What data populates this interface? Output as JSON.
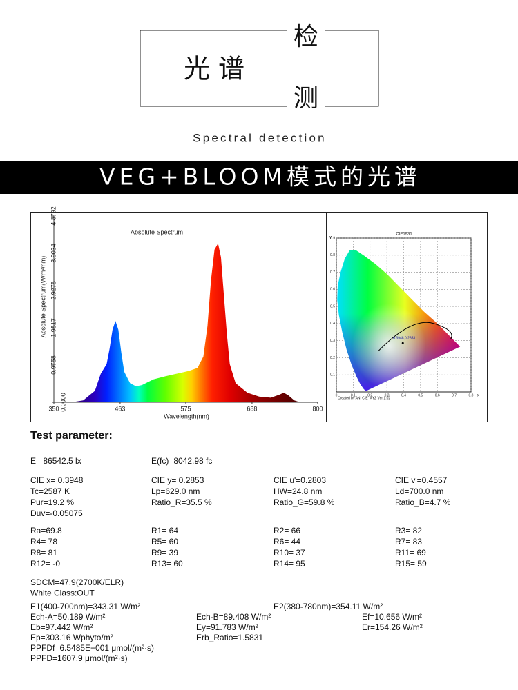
{
  "header": {
    "title_left": "光 谱",
    "title_top": "检",
    "title_bottom": "测",
    "subtitle": "Spectral detection"
  },
  "banner": "VEG+BLOOM模式的光谱",
  "spectrum": {
    "type": "area",
    "title": "Absolute Spectrum",
    "x_label": "Wavelength(nm)",
    "y_label": "Absolute Spectrum(W/m²/nm)",
    "x": [
      380,
      400,
      420,
      430,
      440,
      445,
      450,
      455,
      460,
      465,
      470,
      480,
      490,
      500,
      520,
      540,
      560,
      580,
      595,
      605,
      612,
      618,
      624,
      630,
      635,
      640,
      645,
      650,
      660,
      680,
      700,
      720,
      735,
      742,
      750,
      760,
      770
    ],
    "values": [
      0,
      0.05,
      0.3,
      0.75,
      1.0,
      1.4,
      1.9,
      2.13,
      1.9,
      1.3,
      0.8,
      0.5,
      0.42,
      0.45,
      0.6,
      0.68,
      0.75,
      0.82,
      0.9,
      1.2,
      2.0,
      3.2,
      4.0,
      4.16,
      3.8,
      2.8,
      1.8,
      1.0,
      0.5,
      0.25,
      0.15,
      0.12,
      0.2,
      0.25,
      0.18,
      0.05,
      0
    ],
    "xlim": [
      350,
      800
    ],
    "ylim": [
      0,
      4.8792
    ],
    "xticks": [
      350,
      463,
      575,
      688,
      800
    ],
    "yticks": [
      {
        "value": 0,
        "label": "0.0000"
      },
      0.9758,
      1.9517,
      2.9275,
      3.9034,
      4.8792
    ]
  },
  "cie": {
    "title": "CIE1931",
    "x_label": "x",
    "y_label": "y",
    "credit": "Created by AN_CIE_XYZ Ver 1.02",
    "xlim": [
      0,
      0.8
    ],
    "ylim": [
      0,
      0.9
    ],
    "xticks": [
      0,
      0.1,
      0.2,
      0.3,
      0.4,
      0.5,
      0.6,
      0.7,
      0.8
    ],
    "yticks": [
      0.1,
      0.2,
      0.3,
      0.4,
      0.5,
      0.6,
      0.7,
      0.8,
      0.9
    ],
    "point": {
      "x": 0.3948,
      "y": 0.2853
    },
    "point_label": "0.3948,0.2853"
  },
  "params": {
    "heading": "Test parameter:",
    "blocks": [
      [
        [
          "E=  86542.5 lx",
          "E(fc)=8042.98 fc"
        ]
      ],
      [
        [
          "CIE x= 0.3948",
          "CIE y= 0.2853",
          "CIE u'=0.2803",
          "CIE v'=0.4557"
        ],
        [
          "Tc=2587 K",
          "Lp=629.0 nm",
          "HW=24.8 nm",
          "Ld=700.0 nm"
        ],
        [
          "Pur=19.2 %",
          "Ratio_R=35.5 %",
          "Ratio_G=59.8 %",
          "Ratio_B=4.7 %"
        ],
        [
          "Duv=-0.05075"
        ]
      ],
      [
        [
          "Ra=69.8",
          "R1= 64",
          "R2= 66",
          "R3= 82"
        ],
        [
          "R4= 78",
          "R5= 60",
          "R6= 44",
          "R7= 83"
        ],
        [
          "R8= 81",
          "R9= 39",
          "R10= 37",
          "R11= 69"
        ],
        [
          "R12= -0",
          "R13= 60",
          "R14= 95",
          "R15= 59"
        ]
      ],
      [
        [
          "SDCM=47.9(2700K/ELR)"
        ],
        [
          "White Class:OUT"
        ]
      ],
      [
        [
          "E1(400-700nm)=343.31 W/m²",
          "E2(380-780nm)=354.11 W/m²"
        ],
        [
          "Ech-A=50.189 W/m²",
          "Ech-B=89.408 W/m²",
          "Ef=10.656 W/m²"
        ],
        [
          "Eb=97.442 W/m²",
          "Ey=91.783 W/m²",
          "Er=154.26 W/m²"
        ],
        [
          "Ep=303.16 Wphyto/m²",
          "Erb_Ratio=1.5831"
        ],
        [
          "PPFDf=6.5485E+001 μmol/(m²·s)"
        ],
        [
          "PPFD=1607.9 μmol/(m²·s)"
        ]
      ]
    ]
  }
}
